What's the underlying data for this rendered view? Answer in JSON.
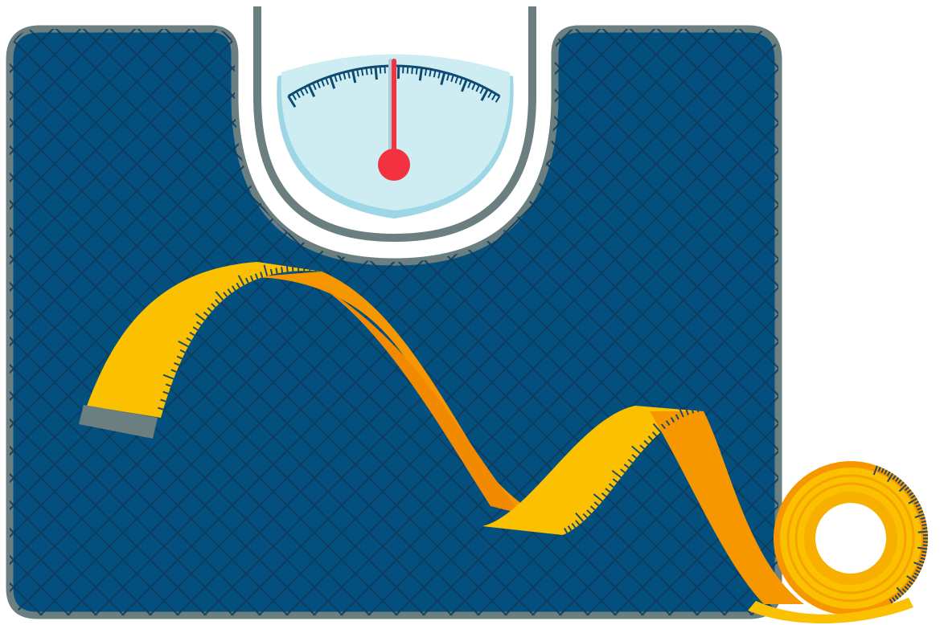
{
  "scene": {
    "subject": "bathroom-scale-with-measuring-tape",
    "colors": {
      "background": "#ffffff",
      "scale_body": "#03507f",
      "scale_border": "#6b7f80",
      "grid_lines": "#0d3a5c",
      "dial_face": "#cdedf3",
      "dial_shadow": "#9dd6e4",
      "dial_ticks": "#0d4a72",
      "needle": "#f2323f",
      "tape_light": "#fbc000",
      "tape_dark": "#f79700",
      "tape_shade": "#f28a00",
      "tape_tick": "#1d4a6a",
      "tape_end_cap": "#6b7f80",
      "roll_ring": "#ffffff"
    },
    "icons": {
      "scale": "bathroom-scale-icon",
      "dial": "weight-dial-icon",
      "needle": "needle-icon",
      "tape": "measuring-tape-icon",
      "roll": "tape-roll-icon"
    },
    "dial": {
      "needle_reading": 0.5
    }
  }
}
